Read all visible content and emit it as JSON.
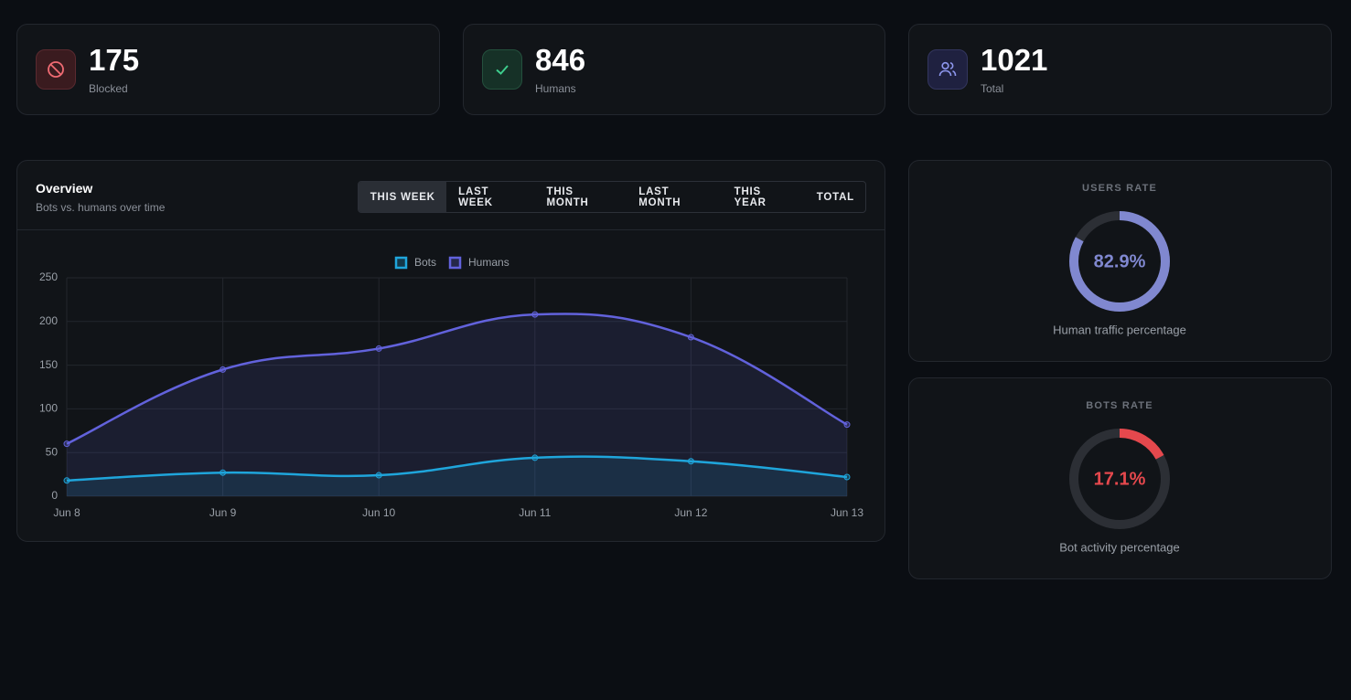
{
  "stats": [
    {
      "value": 175,
      "label": "Blocked"
    },
    {
      "value": 846,
      "label": "Humans"
    },
    {
      "value": 1021,
      "label": "Total"
    }
  ],
  "tabs": [
    "THIS WEEK",
    "LAST WEEK",
    "THIS MONTH",
    "LAST MONTH",
    "THIS YEAR",
    "TOTAL"
  ],
  "active_tab": 0,
  "chart_data": {
    "type": "line",
    "title": "Overview",
    "subtitle": "Bots vs. humans over time",
    "categories": [
      "Jun 8",
      "Jun 9",
      "Jun 10",
      "Jun 11",
      "Jun 12",
      "Jun 13"
    ],
    "series": [
      {
        "name": "Bots",
        "color": "#1fa5db",
        "values": [
          18,
          27,
          24,
          44,
          40,
          22
        ]
      },
      {
        "name": "Humans",
        "color": "#6262dc",
        "values": [
          60,
          145,
          169,
          208,
          182,
          82
        ]
      }
    ],
    "ylim": [
      0,
      250
    ],
    "yticks": [
      0,
      50,
      100,
      150,
      200,
      250
    ],
    "grid": true,
    "legend": "top"
  },
  "rates": [
    {
      "title": "USERS RATE",
      "value": 82.9,
      "value_label": "82.9%",
      "caption": "Human traffic percentage",
      "color": "#8088d0"
    },
    {
      "title": "BOTS RATE",
      "value": 17.1,
      "value_label": "17.1%",
      "caption": "Bot activity percentage",
      "color": "#e5484d"
    }
  ]
}
